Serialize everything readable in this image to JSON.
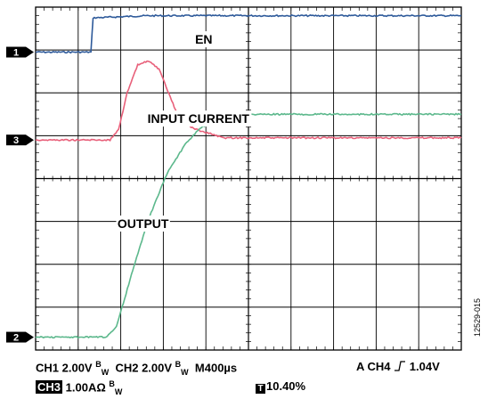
{
  "chart_data": {
    "type": "line",
    "title": "",
    "xlabel": "",
    "ylabel": "",
    "grid": true,
    "x_divisions": 10,
    "y_divisions": 8,
    "time_per_division_us": 400,
    "x_range_us": [
      0,
      4000
    ],
    "y_range_div": [
      -4,
      4
    ],
    "series": [
      {
        "name": "EN",
        "channel": 1,
        "color": "#2e5a9a",
        "x": [
          0,
          520,
          540,
          1050,
          4000
        ],
        "y": [
          2.95,
          2.95,
          3.75,
          3.8,
          3.8
        ]
      },
      {
        "name": "INPUT CURRENT",
        "channel": 3,
        "color": "#e8607a",
        "x": [
          0,
          700,
          780,
          860,
          960,
          1060,
          1160,
          1240,
          1340,
          1460,
          1560,
          1640,
          1760,
          1900,
          2050,
          4000
        ],
        "y": [
          0.9,
          0.9,
          1.15,
          2.0,
          2.65,
          2.75,
          2.55,
          2.05,
          1.45,
          1.2,
          1.1,
          1.05,
          0.95,
          0.95,
          0.95,
          0.95
        ]
      },
      {
        "name": "OUTPUT",
        "channel": 2,
        "color": "#5cb88c",
        "x": [
          0,
          660,
          760,
          900,
          1060,
          1240,
          1420,
          1560,
          1700,
          1840,
          1950,
          2100,
          2300,
          4000
        ],
        "y": [
          -3.7,
          -3.7,
          -3.45,
          -2.25,
          -0.95,
          0.15,
          0.85,
          1.2,
          1.35,
          1.45,
          1.5,
          1.5,
          1.5,
          1.5
        ]
      }
    ],
    "markers": [
      {
        "label": "1",
        "level_div": 2.95
      },
      {
        "label": "3",
        "level_div": 0.9
      },
      {
        "label": "2",
        "level_div": -3.7
      }
    ],
    "annotations": [
      {
        "text": "EN",
        "x_us": 1580,
        "y_div": 3.25
      },
      {
        "text": "INPUT CURRENT",
        "x_us": 1530,
        "y_div": 1.4
      },
      {
        "text": "OUTPUT",
        "x_us": 1010,
        "y_div": -1.05
      }
    ]
  },
  "status": {
    "ch1": "CH1  2.00V",
    "bw": "B",
    "w": "W",
    "ch2": "CH2  2.00V",
    "timebase": "M400µs",
    "trigger": "A  CH4",
    "trigger_level": "1.04V",
    "ch3_label": "CH3",
    "ch3_value": "1.00AΩ",
    "trigger_pos_icon": "T",
    "trigger_pos": "10.40%"
  },
  "figure_id": "12529-015"
}
